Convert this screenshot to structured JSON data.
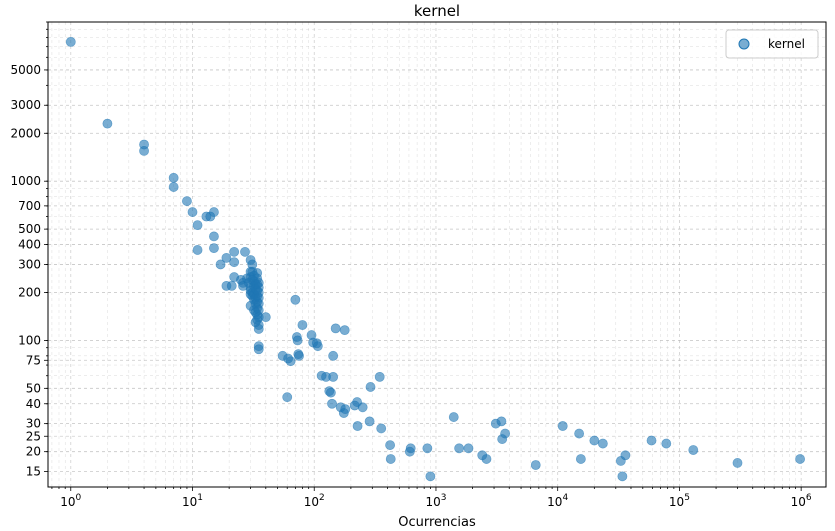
{
  "chart_data": {
    "type": "scatter",
    "title": "kernel",
    "xlabel": "Ocurrencias",
    "ylabel": "",
    "x_scale": "log",
    "y_scale": "log",
    "xlim": [
      0.65,
      1600000
    ],
    "ylim": [
      12,
      10000
    ],
    "grid": true,
    "legend_position": "top-right",
    "x_tick_labels": [
      {
        "value": 1,
        "base": "10",
        "exp": "0"
      },
      {
        "value": 10,
        "base": "10",
        "exp": "1"
      },
      {
        "value": 100,
        "base": "10",
        "exp": "2"
      },
      {
        "value": 1000,
        "base": "10",
        "exp": "3"
      },
      {
        "value": 10000,
        "base": "10",
        "exp": "4"
      },
      {
        "value": 100000,
        "base": "10",
        "exp": "5"
      },
      {
        "value": 1000000,
        "base": "10",
        "exp": "6"
      }
    ],
    "y_tick_labels": [
      {
        "value": 15,
        "label": "15"
      },
      {
        "value": 20,
        "label": "20"
      },
      {
        "value": 25,
        "label": "25"
      },
      {
        "value": 30,
        "label": "30"
      },
      {
        "value": 40,
        "label": "40"
      },
      {
        "value": 50,
        "label": "50"
      },
      {
        "value": 75,
        "label": "75"
      },
      {
        "value": 100,
        "label": "100"
      },
      {
        "value": 200,
        "label": "200"
      },
      {
        "value": 300,
        "label": "300"
      },
      {
        "value": 400,
        "label": "400"
      },
      {
        "value": 500,
        "label": "500"
      },
      {
        "value": 700,
        "label": "700"
      },
      {
        "value": 1000,
        "label": "1000"
      },
      {
        "value": 2000,
        "label": "2000"
      },
      {
        "value": 3000,
        "label": "3000"
      },
      {
        "value": 5000,
        "label": "5000"
      }
    ],
    "color": "#1f77b4",
    "series": [
      {
        "name": "kernel",
        "points": [
          [
            1,
            7500
          ],
          [
            2,
            2300
          ],
          [
            4,
            1700
          ],
          [
            4,
            1550
          ],
          [
            7,
            1050
          ],
          [
            7,
            920
          ],
          [
            9,
            750
          ],
          [
            10,
            640
          ],
          [
            11,
            530
          ],
          [
            11,
            370
          ],
          [
            13,
            600
          ],
          [
            14,
            600
          ],
          [
            15,
            640
          ],
          [
            15,
            450
          ],
          [
            15,
            380
          ],
          [
            17,
            300
          ],
          [
            19,
            330
          ],
          [
            19,
            220
          ],
          [
            21,
            220
          ],
          [
            22,
            360
          ],
          [
            22,
            310
          ],
          [
            22,
            250
          ],
          [
            25,
            240
          ],
          [
            26,
            230
          ],
          [
            26,
            220
          ],
          [
            27,
            360
          ],
          [
            28,
            245
          ],
          [
            29,
            230
          ],
          [
            30,
            320
          ],
          [
            30,
            270
          ],
          [
            30,
            250
          ],
          [
            30,
            215
          ],
          [
            30,
            205
          ],
          [
            30,
            195
          ],
          [
            30,
            165
          ],
          [
            31,
            300
          ],
          [
            31,
            270
          ],
          [
            31,
            240
          ],
          [
            31,
            200
          ],
          [
            31,
            190
          ],
          [
            32,
            255
          ],
          [
            32,
            235
          ],
          [
            32,
            220
          ],
          [
            32,
            195
          ],
          [
            32,
            180
          ],
          [
            32,
            155
          ],
          [
            33,
            225
          ],
          [
            33,
            210
          ],
          [
            33,
            185
          ],
          [
            33,
            170
          ],
          [
            33,
            130
          ],
          [
            33,
            150
          ],
          [
            34,
            265
          ],
          [
            34,
            245
          ],
          [
            34,
            225
          ],
          [
            34,
            205
          ],
          [
            34,
            190
          ],
          [
            34,
            175
          ],
          [
            34,
            160
          ],
          [
            34,
            145
          ],
          [
            34,
            135
          ],
          [
            35,
            230
          ],
          [
            35,
            215
          ],
          [
            35,
            200
          ],
          [
            35,
            185
          ],
          [
            35,
            170
          ],
          [
            35,
            155
          ],
          [
            35,
            140
          ],
          [
            35,
            125
          ],
          [
            35,
            118
          ],
          [
            35,
            92
          ],
          [
            35,
            88
          ],
          [
            40,
            140
          ],
          [
            55,
            80
          ],
          [
            60,
            44
          ],
          [
            61,
            77
          ],
          [
            64,
            74
          ],
          [
            70,
            180
          ],
          [
            72,
            105
          ],
          [
            73,
            100
          ],
          [
            74,
            82
          ],
          [
            75,
            80
          ],
          [
            80,
            125
          ],
          [
            95,
            108
          ],
          [
            98,
            97
          ],
          [
            105,
            96
          ],
          [
            107,
            92
          ],
          [
            115,
            60
          ],
          [
            125,
            59
          ],
          [
            133,
            48
          ],
          [
            137,
            47
          ],
          [
            140,
            40
          ],
          [
            143,
            59
          ],
          [
            143,
            80
          ],
          [
            150,
            119
          ],
          [
            165,
            38
          ],
          [
            175,
            35
          ],
          [
            178,
            116
          ],
          [
            180,
            37
          ],
          [
            215,
            39
          ],
          [
            225,
            41
          ],
          [
            227,
            29
          ],
          [
            250,
            38
          ],
          [
            285,
            31
          ],
          [
            290,
            51
          ],
          [
            345,
            59
          ],
          [
            355,
            28
          ],
          [
            420,
            22
          ],
          [
            425,
            18
          ],
          [
            610,
            20
          ],
          [
            620,
            21
          ],
          [
            850,
            21
          ],
          [
            900,
            14
          ],
          [
            1400,
            33
          ],
          [
            1550,
            21
          ],
          [
            1850,
            21
          ],
          [
            2400,
            19
          ],
          [
            2600,
            18
          ],
          [
            3100,
            30
          ],
          [
            3450,
            31
          ],
          [
            3500,
            24
          ],
          [
            3700,
            26
          ],
          [
            6600,
            16.5
          ],
          [
            11000,
            29
          ],
          [
            15000,
            26
          ],
          [
            15500,
            18
          ],
          [
            20000,
            23.5
          ],
          [
            23500,
            22.5
          ],
          [
            33000,
            17.5
          ],
          [
            34000,
            14
          ],
          [
            36000,
            19
          ],
          [
            59000,
            23.5
          ],
          [
            78000,
            22.5
          ],
          [
            130000,
            20.5
          ],
          [
            300000,
            17
          ],
          [
            980000,
            18
          ]
        ]
      }
    ]
  }
}
